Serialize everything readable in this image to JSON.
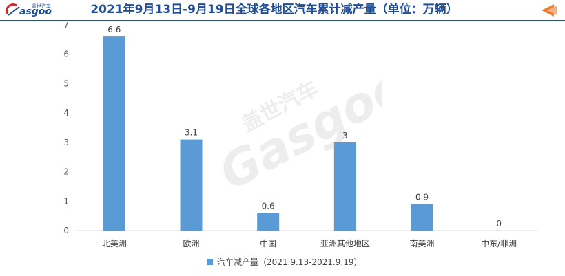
{
  "header": {
    "title": "2021年9月13日-9月19日全球各地区汽车累计减产量（单位：万辆）",
    "logo_text": "Gasgoo 盖世汽车",
    "back_icon": "back-arrow-icon"
  },
  "colors": {
    "title": "#1f4e96",
    "bar": "#5b9bd5",
    "accent": "#ed7d31"
  },
  "chart_data": {
    "type": "bar",
    "title": "2021年9月13日-9月19日全球各地区汽车累计减产量（单位：万辆）",
    "categories": [
      "北美洲",
      "欧洲",
      "中国",
      "亚洲其他地区",
      "南美洲",
      "中东/非洲"
    ],
    "series": [
      {
        "name": "汽车减产量（2021.9.13-2021.9.19）",
        "values": [
          6.6,
          3.1,
          0.6,
          3,
          0.9,
          0
        ]
      }
    ],
    "data_labels": [
      "6.6",
      "3.1",
      "0.6",
      "3",
      "0.9",
      "0"
    ],
    "y_ticks": [
      0,
      1,
      2,
      3,
      4,
      5,
      6,
      7
    ],
    "ylim": [
      0,
      7
    ],
    "xlabel": "",
    "ylabel": "",
    "grid": false,
    "legend_position": "bottom"
  },
  "legend": {
    "label": "汽车减产量（2021.9.13-2021.9.19）"
  }
}
